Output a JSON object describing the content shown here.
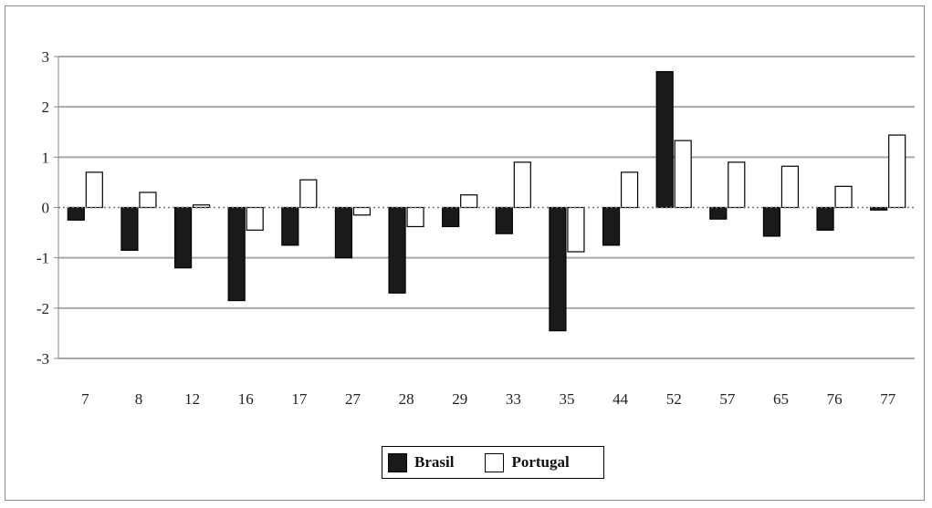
{
  "chart_data": {
    "type": "bar",
    "categories": [
      "7",
      "8",
      "12",
      "16",
      "17",
      "27",
      "28",
      "29",
      "33",
      "35",
      "44",
      "52",
      "57",
      "65",
      "76",
      "77"
    ],
    "series": [
      {
        "name": "Brasil",
        "color": "#1a1a1a",
        "values": [
          -0.25,
          -0.85,
          -1.2,
          -1.85,
          -0.75,
          -1.0,
          -1.7,
          -0.38,
          -0.52,
          -2.45,
          -0.75,
          2.7,
          -0.23,
          -0.57,
          -0.45,
          -0.05
        ]
      },
      {
        "name": "Portugal",
        "color": "#ffffff",
        "values": [
          0.7,
          0.3,
          0.05,
          -0.45,
          0.55,
          -0.15,
          -0.38,
          0.25,
          0.9,
          -0.88,
          0.7,
          1.33,
          0.9,
          0.82,
          0.42,
          1.44
        ]
      }
    ],
    "ylim": [
      -3,
      3
    ],
    "yticks": [
      "3",
      "2",
      "1",
      "0",
      "-1",
      "-2",
      "-3"
    ],
    "grid": true,
    "legend_position": "bottom-center",
    "title": "",
    "xlabel": "",
    "ylabel": ""
  }
}
